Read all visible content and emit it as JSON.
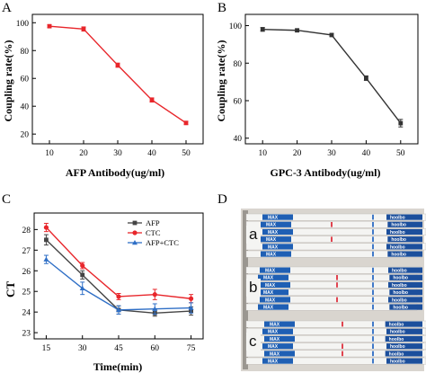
{
  "panels": {
    "a": "A",
    "b": "B",
    "c": "C",
    "d": "D"
  },
  "chart_data": [
    {
      "type": "line",
      "panel": "A",
      "xlabel": "AFP Antibody(ug/ml)",
      "ylabel": "Coupling rate(%)",
      "x": [
        10,
        20,
        30,
        40,
        50
      ],
      "xticks": [
        10,
        20,
        30,
        40,
        50
      ],
      "xlim": [
        5,
        55
      ],
      "yticks": [
        20,
        40,
        60,
        80,
        100
      ],
      "ylim": [
        13,
        106
      ],
      "grid": false,
      "series": [
        {
          "name": "",
          "color": "#e8262b",
          "values": [
            97.5,
            95.5,
            69.5,
            44.5,
            28.0
          ],
          "errors": [
            1.0,
            1.5,
            1.5,
            1.5,
            1.2
          ]
        }
      ]
    },
    {
      "type": "line",
      "panel": "B",
      "xlabel": "GPC-3 Antibody(ug/ml)",
      "ylabel": "Coupling rate(%)",
      "x": [
        10,
        20,
        30,
        40,
        50
      ],
      "xticks": [
        10,
        20,
        30,
        40,
        50
      ],
      "xlim": [
        5,
        55
      ],
      "yticks": [
        40,
        60,
        80,
        100
      ],
      "ylim": [
        37,
        106
      ],
      "grid": false,
      "series": [
        {
          "name": "",
          "color": "#333333",
          "values": [
            98.0,
            97.5,
            95.0,
            72.0,
            48.0
          ],
          "errors": [
            1.0,
            0.8,
            0.8,
            1.2,
            2.0
          ]
        }
      ]
    },
    {
      "type": "line",
      "panel": "C",
      "xlabel": "Time(min)",
      "ylabel": "CT",
      "x": [
        15,
        30,
        45,
        60,
        75
      ],
      "xticks": [
        15,
        30,
        45,
        60,
        75
      ],
      "xlim": [
        10,
        80
      ],
      "yticks": [
        23,
        24,
        25,
        26,
        27,
        28
      ],
      "ylim": [
        22.7,
        28.8
      ],
      "grid": false,
      "legend_position": "top-right",
      "series": [
        {
          "name": "AFP",
          "color": "#444444",
          "marker": "square",
          "values": [
            27.5,
            25.8,
            24.1,
            23.95,
            24.05
          ],
          "errors": [
            0.25,
            0.2,
            0.2,
            0.15,
            0.2
          ]
        },
        {
          "name": "CTC",
          "color": "#e8262b",
          "marker": "circle",
          "values": [
            28.1,
            26.25,
            24.75,
            24.85,
            24.65
          ],
          "errors": [
            0.2,
            0.15,
            0.15,
            0.25,
            0.2
          ]
        },
        {
          "name": "AFP+CTC",
          "color": "#2f6fc6",
          "marker": "triangle",
          "values": [
            26.55,
            25.15,
            24.1,
            24.15,
            24.2
          ],
          "errors": [
            0.2,
            0.3,
            0.2,
            0.25,
            0.25
          ]
        }
      ]
    }
  ],
  "photo": {
    "row_labels": [
      "a",
      "b",
      "c"
    ],
    "strip_brand": "MAX",
    "cassette_brand": "hoolbo",
    "strip_color": "#1f5fb4",
    "line_color": "#e0444f"
  }
}
